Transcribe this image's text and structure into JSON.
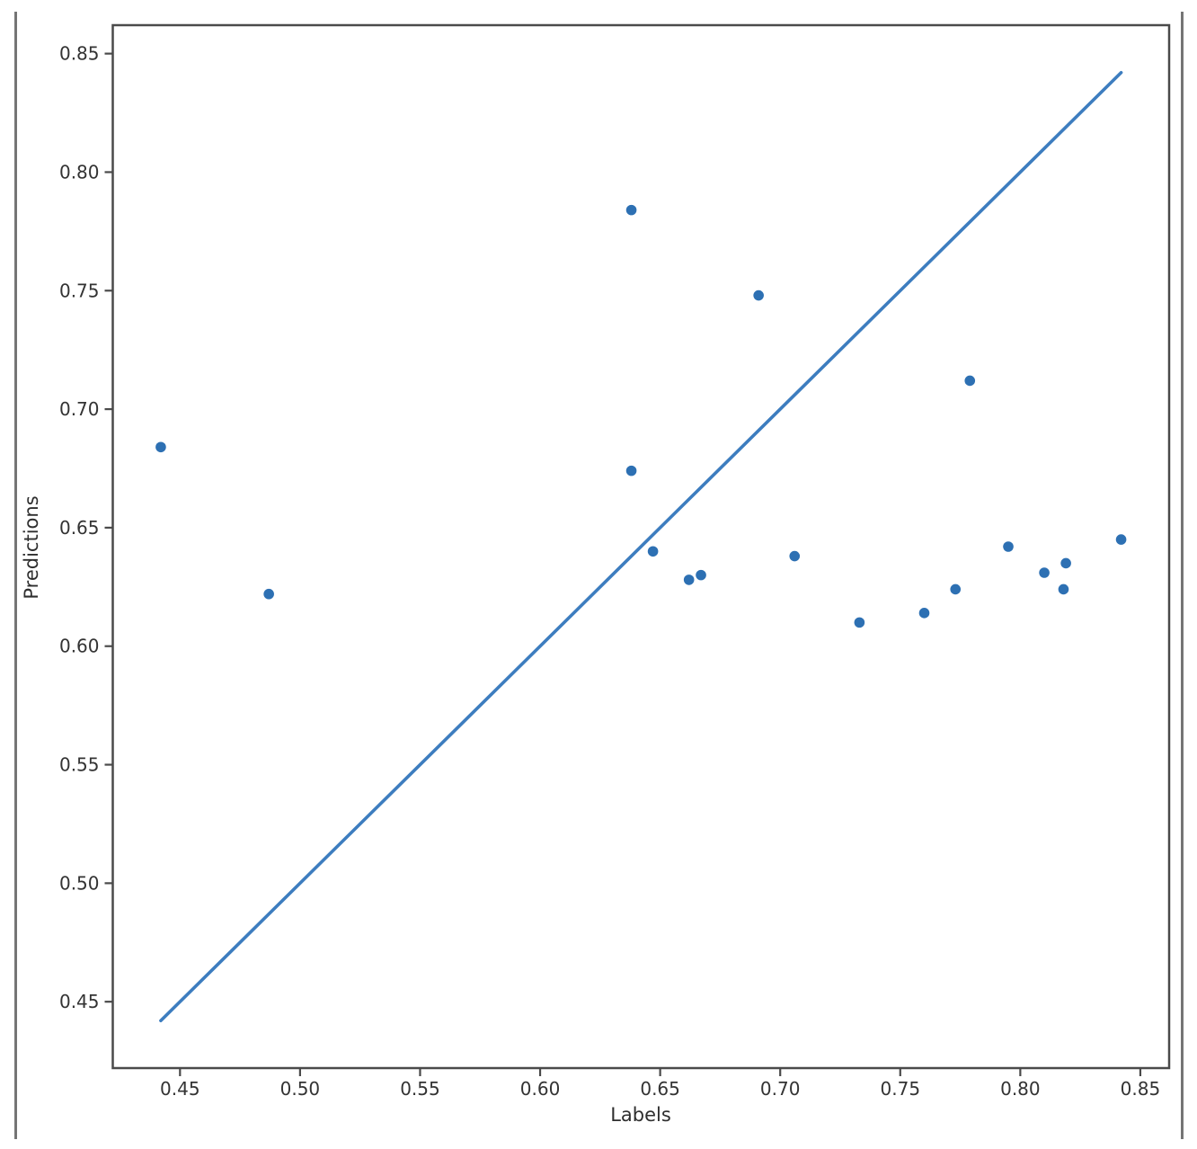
{
  "figure": {
    "background_color": "#ffffff",
    "frame_border_color": "#757575"
  },
  "chart_data": {
    "type": "scatter",
    "title": "",
    "xlabel": "Labels",
    "ylabel": "Predictions",
    "xlim": [
      0.422,
      0.862
    ],
    "ylim": [
      0.422,
      0.862
    ],
    "xticks": [
      0.45,
      0.5,
      0.55,
      0.6,
      0.65,
      0.7,
      0.75,
      0.8,
      0.85
    ],
    "yticks": [
      0.45,
      0.5,
      0.55,
      0.6,
      0.65,
      0.7,
      0.75,
      0.8,
      0.85
    ],
    "grid": false,
    "legend": "none",
    "points": [
      [
        0.442,
        0.684
      ],
      [
        0.487,
        0.622
      ],
      [
        0.638,
        0.784
      ],
      [
        0.638,
        0.674
      ],
      [
        0.647,
        0.64
      ],
      [
        0.662,
        0.628
      ],
      [
        0.667,
        0.63
      ],
      [
        0.691,
        0.748
      ],
      [
        0.706,
        0.638
      ],
      [
        0.733,
        0.61
      ],
      [
        0.76,
        0.614
      ],
      [
        0.773,
        0.624
      ],
      [
        0.779,
        0.712
      ],
      [
        0.795,
        0.642
      ],
      [
        0.81,
        0.631
      ],
      [
        0.818,
        0.624
      ],
      [
        0.819,
        0.635
      ],
      [
        0.842,
        0.645
      ]
    ],
    "identity_line": {
      "x": [
        0.442,
        0.842
      ],
      "y": [
        0.442,
        0.842
      ]
    },
    "point_color": "#2d70b3",
    "line_color": "#3d7dbf",
    "axis_color": "#4a4a4a",
    "tick_text_color": "#333333",
    "label_text_color": "#2e2e2e"
  }
}
